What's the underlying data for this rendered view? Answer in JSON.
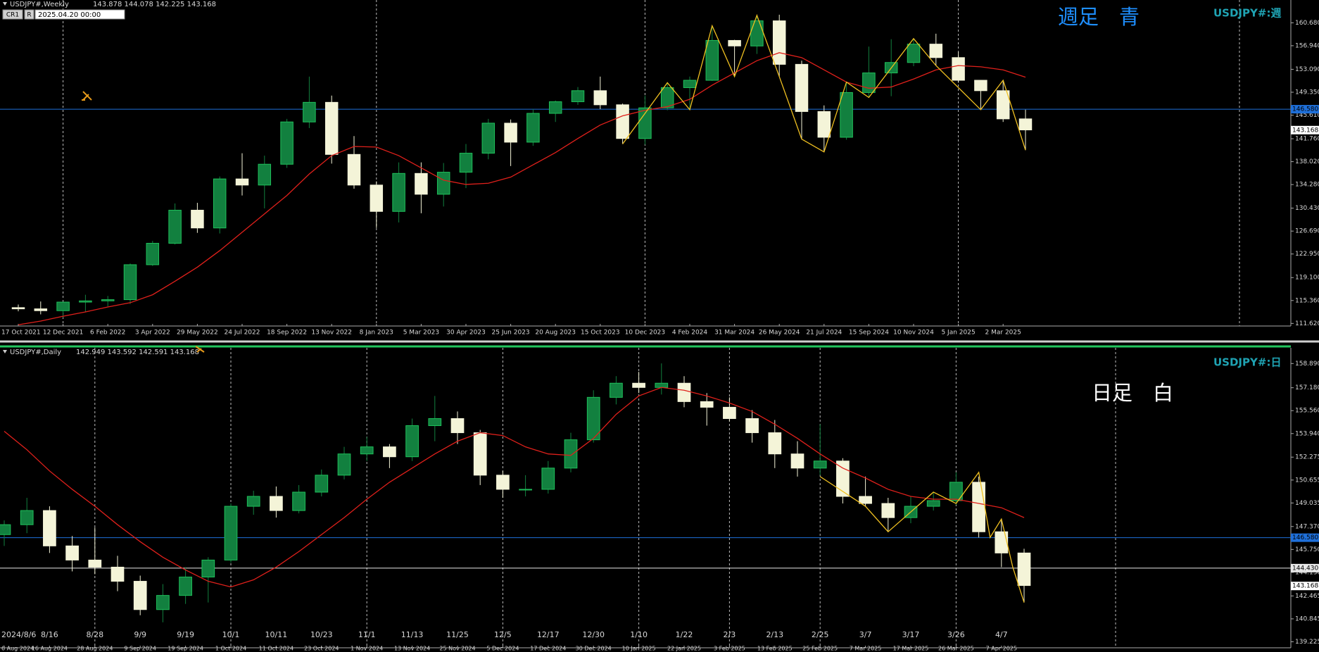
{
  "toolbar": {
    "buttons": [
      "CR1",
      "R"
    ],
    "date": "2025.04.20 00:00"
  },
  "chart_data": [
    {
      "type": "candlestick",
      "title": "USDJPY#,Weekly",
      "ohlc_text": "143.878 144.078 142.225 143.168",
      "symbol_label": "USDJPY#:週",
      "note": "週足　青",
      "note_color": "#1e8fff",
      "bull_color": "#12803f",
      "bear_color": "#f4f4d8",
      "ma_color": "#e0201b",
      "zigzag_color": "#f0c020",
      "ylim": [
        111.2,
        164.4
      ],
      "yticks": [
        {
          "value": 160.68,
          "label": "160.680"
        },
        {
          "value": 156.94,
          "label": "156.940"
        },
        {
          "value": 153.09,
          "label": "153.090"
        },
        {
          "value": 149.35,
          "label": "149.350"
        },
        {
          "value": 145.61,
          "label": "145.610"
        },
        {
          "value": 141.76,
          "label": "141.760"
        },
        {
          "value": 138.02,
          "label": "138.020"
        },
        {
          "value": 134.28,
          "label": "134.280"
        },
        {
          "value": 130.43,
          "label": "130.430"
        },
        {
          "value": 126.69,
          "label": "126.690"
        },
        {
          "value": 122.95,
          "label": "122.950"
        },
        {
          "value": 119.1,
          "label": "119.100"
        },
        {
          "value": 115.36,
          "label": "115.360"
        },
        {
          "value": 111.62,
          "label": "111.620"
        }
      ],
      "xticks": [
        {
          "value": 0,
          "label": "17 Oct 2021"
        },
        {
          "value": 2,
          "label": "12 Dec 2021"
        },
        {
          "value": 4,
          "label": "6 Feb 2022"
        },
        {
          "value": 6,
          "label": "3 Apr 2022"
        },
        {
          "value": 8,
          "label": "29 May 2022"
        },
        {
          "value": 10,
          "label": "24 Jul 2022"
        },
        {
          "value": 12,
          "label": "18 Sep 2022"
        },
        {
          "value": 14,
          "label": "13 Nov 2022"
        },
        {
          "value": 16,
          "label": "8 Jan 2023"
        },
        {
          "value": 18,
          "label": "5 Mar 2023"
        },
        {
          "value": 20,
          "label": "30 Apr 2023"
        },
        {
          "value": 22,
          "label": "25 Jun 2023"
        },
        {
          "value": 24,
          "label": "20 Aug 2023"
        },
        {
          "value": 26,
          "label": "15 Oct 2023"
        },
        {
          "value": 28,
          "label": "10 Dec 2023"
        },
        {
          "value": 30,
          "label": "4 Feb 2024"
        },
        {
          "value": 32,
          "label": "31 Mar 2024"
        },
        {
          "value": 34,
          "label": "26 May 2024"
        },
        {
          "value": 36,
          "label": "21 Jul 2024"
        },
        {
          "value": 38,
          "label": "15 Sep 2024"
        },
        {
          "value": 40,
          "label": "10 Nov 2024"
        },
        {
          "value": 42,
          "label": "5 Jan 2025"
        },
        {
          "value": 44,
          "label": "2 Mar 2025"
        }
      ],
      "separators": [
        1,
        8,
        14,
        21
      ],
      "hlines": [
        {
          "value": 146.58,
          "label": "146.580",
          "color": "#1e6fd9"
        }
      ],
      "last": {
        "value": 143.168,
        "label": "143.168"
      },
      "candles": [
        [
          114.2,
          114.7,
          113.6,
          114.0
        ],
        [
          114.0,
          115.2,
          113.1,
          113.7
        ],
        [
          113.7,
          115.1,
          112.6,
          115.1
        ],
        [
          115.1,
          116.3,
          113.5,
          115.3
        ],
        [
          115.3,
          116.1,
          114.4,
          115.5
        ],
        [
          115.5,
          121.4,
          114.8,
          121.2
        ],
        [
          121.2,
          125.1,
          121.0,
          124.7
        ],
        [
          124.7,
          131.2,
          124.5,
          130.1
        ],
        [
          130.1,
          131.3,
          126.4,
          127.2
        ],
        [
          127.2,
          135.6,
          126.3,
          135.2
        ],
        [
          135.2,
          139.4,
          132.5,
          134.2
        ],
        [
          134.2,
          139.0,
          130.4,
          137.6
        ],
        [
          137.6,
          145.0,
          137.0,
          144.5
        ],
        [
          144.5,
          151.9,
          143.5,
          147.7
        ],
        [
          147.7,
          148.8,
          137.7,
          139.2
        ],
        [
          139.2,
          142.2,
          133.6,
          134.2
        ],
        [
          134.2,
          134.8,
          127.2,
          129.9
        ],
        [
          129.9,
          137.9,
          128.1,
          136.1
        ],
        [
          136.1,
          137.9,
          129.6,
          132.7
        ],
        [
          132.7,
          137.8,
          130.7,
          136.3
        ],
        [
          136.3,
          140.9,
          133.7,
          139.4
        ],
        [
          139.4,
          145.0,
          138.4,
          144.3
        ],
        [
          144.3,
          144.9,
          137.3,
          141.2
        ],
        [
          141.2,
          146.6,
          140.6,
          145.9
        ],
        [
          145.9,
          148.0,
          144.5,
          147.8
        ],
        [
          147.8,
          150.2,
          147.3,
          149.6
        ],
        [
          149.6,
          151.9,
          146.6,
          147.3
        ],
        [
          147.3,
          147.5,
          140.9,
          141.8
        ],
        [
          141.8,
          148.8,
          140.8,
          146.8
        ],
        [
          146.8,
          150.9,
          146.4,
          150.1
        ],
        [
          150.1,
          151.9,
          146.5,
          151.3
        ],
        [
          151.3,
          160.2,
          151.2,
          157.8
        ],
        [
          157.8,
          157.9,
          151.9,
          156.9
        ],
        [
          156.9,
          161.9,
          155.6,
          161.0
        ],
        [
          161.0,
          162.0,
          151.9,
          153.9
        ],
        [
          153.9,
          154.5,
          141.7,
          146.2
        ],
        [
          146.2,
          147.2,
          139.6,
          142.0
        ],
        [
          142.0,
          151.0,
          141.6,
          149.3
        ],
        [
          149.3,
          156.8,
          148.5,
          152.5
        ],
        [
          152.5,
          158.0,
          148.7,
          154.2
        ],
        [
          154.2,
          158.1,
          153.6,
          157.2
        ],
        [
          157.2,
          158.9,
          153.7,
          155.0
        ],
        [
          155.0,
          155.9,
          150.9,
          151.3
        ],
        [
          151.3,
          151.3,
          146.5,
          149.6
        ],
        [
          149.6,
          151.3,
          144.5,
          145.0
        ],
        [
          145.0,
          146.5,
          139.9,
          143.2
        ]
      ],
      "ma": [
        111.4,
        112.0,
        112.8,
        113.5,
        114.3,
        115.0,
        116.3,
        118.5,
        120.8,
        123.5,
        126.5,
        129.5,
        132.5,
        136.0,
        139.0,
        140.5,
        140.4,
        139.0,
        137.0,
        135.0,
        134.3,
        134.5,
        135.5,
        137.5,
        139.5,
        141.8,
        144.0,
        145.5,
        146.4,
        147.0,
        148.2,
        150.5,
        152.5,
        154.5,
        155.8,
        155.0,
        153.0,
        151.0,
        150.0,
        150.2,
        151.5,
        153.0,
        153.7,
        153.5,
        153.0,
        151.8
      ],
      "zigzag": {
        "x": [
          27,
          29,
          30,
          31,
          32,
          33,
          34,
          35,
          36,
          37,
          38,
          40,
          41,
          43,
          44,
          45
        ],
        "y": [
          140.9,
          150.9,
          146.5,
          160.2,
          151.9,
          161.9,
          151.9,
          141.7,
          139.6,
          151.0,
          148.5,
          158.1,
          153.7,
          146.5,
          151.3,
          139.9
        ]
      }
    },
    {
      "type": "candlestick",
      "title": "USDJPY#,Daily",
      "ohlc_text": "142.949 143.592 142.591 143.168",
      "symbol_label": "USDJPY#:日",
      "note": "日足　白",
      "note_color": "#ffffff",
      "bull_color": "#12803f",
      "bear_color": "#f4f4d8",
      "ma_color": "#e0201b",
      "zigzag_color": "#f0c020",
      "ylim": [
        138.8,
        160.0
      ],
      "yticks": [
        {
          "value": 158.89,
          "label": "158.890"
        },
        {
          "value": 157.18,
          "label": "157.180"
        },
        {
          "value": 155.56,
          "label": "155.560"
        },
        {
          "value": 153.94,
          "label": "153.940"
        },
        {
          "value": 152.275,
          "label": "152.275"
        },
        {
          "value": 150.655,
          "label": "150.655"
        },
        {
          "value": 149.035,
          "label": "149.035"
        },
        {
          "value": 147.37,
          "label": "147.370"
        },
        {
          "value": 145.75,
          "label": "145.750"
        },
        {
          "value": 144.13,
          "label": "144.130"
        },
        {
          "value": 142.465,
          "label": "142.465"
        },
        {
          "value": 140.845,
          "label": "140.845"
        },
        {
          "value": 139.225,
          "label": "139.225"
        }
      ],
      "xticks": [
        {
          "value": 0,
          "label": "2024/8/6"
        },
        {
          "value": 2,
          "label": "8/16"
        },
        {
          "value": 4,
          "label": "8/28"
        },
        {
          "value": 6,
          "label": "9/9"
        },
        {
          "value": 8,
          "label": "9/19"
        },
        {
          "value": 10,
          "label": "10/1"
        },
        {
          "value": 12,
          "label": "10/11"
        },
        {
          "value": 14,
          "label": "10/23"
        },
        {
          "value": 16,
          "label": "11/1"
        },
        {
          "value": 18,
          "label": "11/13"
        },
        {
          "value": 20,
          "label": "11/25"
        },
        {
          "value": 22,
          "label": "12/5"
        },
        {
          "value": 24,
          "label": "12/17"
        },
        {
          "value": 26,
          "label": "12/30"
        },
        {
          "value": 28,
          "label": "1/10"
        },
        {
          "value": 30,
          "label": "1/22"
        },
        {
          "value": 32,
          "label": "2/3"
        },
        {
          "value": 34,
          "label": "2/13"
        },
        {
          "value": 36,
          "label": "2/25"
        },
        {
          "value": 38,
          "label": "3/7"
        },
        {
          "value": 40,
          "label": "3/17"
        },
        {
          "value": 42,
          "label": "3/26"
        },
        {
          "value": 44,
          "label": "4/7"
        }
      ],
      "xtick_dates": [
        "6 Aug 2024",
        "16 Aug 2024",
        "28 Aug 2024",
        "9 Sep 2024",
        "19 Sep 2024",
        "1 Oct 2024",
        "11 Oct 2024",
        "23 Oct 2024",
        "1 Nov 2024",
        "13 Nov 2024",
        "25 Nov 2024",
        "5 Dec 2024",
        "17 Dec 2024",
        "30 Dec 2024",
        "10 Jan 2025",
        "22 Jan 2025",
        "3 Feb 2025",
        "13 Feb 2025",
        "25 Feb 2025",
        "7 Mar 2025",
        "17 Mar 2025",
        "26 Mar 2025",
        "7 Apr 2025"
      ],
      "separators": [
        2,
        5,
        8,
        11,
        14,
        16,
        18,
        21
      ],
      "hlines": [
        {
          "value": 146.58,
          "label": "146.580",
          "color": "#1e6fd9"
        },
        {
          "value": 144.43,
          "label": "144.430",
          "color": "#e8e8e8"
        }
      ],
      "last": {
        "value": 143.168,
        "label": "143.168"
      },
      "candles": [
        [
          146.8,
          147.8,
          146.0,
          147.5
        ],
        [
          147.5,
          149.4,
          146.9,
          148.5
        ],
        [
          148.5,
          148.8,
          145.5,
          146.0
        ],
        [
          146.0,
          146.7,
          144.2,
          145.0
        ],
        [
          145.0,
          147.3,
          144.0,
          144.5
        ],
        [
          144.5,
          145.3,
          142.8,
          143.5
        ],
        [
          143.5,
          143.9,
          141.1,
          141.5
        ],
        [
          141.5,
          143.3,
          140.6,
          142.5
        ],
        [
          142.5,
          144.5,
          141.9,
          143.8
        ],
        [
          143.8,
          145.2,
          142.0,
          145.0
        ],
        [
          145.0,
          149.0,
          144.8,
          148.8
        ],
        [
          148.8,
          149.9,
          148.2,
          149.5
        ],
        [
          149.5,
          150.2,
          148.0,
          148.5
        ],
        [
          148.5,
          150.3,
          148.3,
          149.8
        ],
        [
          149.8,
          151.4,
          149.5,
          151.0
        ],
        [
          151.0,
          153.0,
          150.7,
          152.5
        ],
        [
          152.5,
          153.7,
          152.0,
          153.0
        ],
        [
          153.0,
          153.2,
          151.5,
          152.3
        ],
        [
          152.3,
          155.0,
          152.0,
          154.5
        ],
        [
          154.5,
          156.6,
          153.4,
          155.0
        ],
        [
          155.0,
          155.5,
          153.2,
          154.0
        ],
        [
          154.0,
          154.2,
          150.3,
          151.0
        ],
        [
          151.0,
          151.3,
          149.4,
          150.0
        ],
        [
          150.0,
          151.0,
          149.5,
          150.0
        ],
        [
          150.0,
          152.0,
          149.7,
          151.5
        ],
        [
          151.5,
          154.0,
          151.2,
          153.5
        ],
        [
          153.5,
          157.0,
          153.3,
          156.5
        ],
        [
          156.5,
          158.0,
          156.0,
          157.5
        ],
        [
          157.5,
          158.3,
          156.8,
          157.2
        ],
        [
          157.2,
          158.9,
          156.7,
          157.5
        ],
        [
          157.5,
          158.0,
          155.8,
          156.2
        ],
        [
          156.2,
          156.8,
          154.5,
          155.8
        ],
        [
          155.8,
          156.5,
          154.8,
          155.0
        ],
        [
          155.0,
          155.6,
          153.3,
          154.0
        ],
        [
          154.0,
          154.9,
          151.5,
          152.5
        ],
        [
          152.5,
          153.4,
          150.9,
          151.5
        ],
        [
          151.5,
          154.6,
          151.0,
          152.0
        ],
        [
          152.0,
          152.2,
          149.0,
          149.5
        ],
        [
          149.5,
          150.9,
          148.8,
          149.0
        ],
        [
          149.0,
          149.4,
          147.0,
          148.0
        ],
        [
          148.0,
          149.5,
          147.6,
          148.8
        ],
        [
          148.8,
          149.8,
          148.5,
          149.2
        ],
        [
          149.2,
          151.2,
          148.9,
          150.5
        ],
        [
          150.5,
          150.9,
          146.6,
          147.0
        ],
        [
          147.0,
          147.9,
          144.5,
          145.5
        ],
        [
          145.5,
          145.8,
          142.0,
          143.2
        ]
      ],
      "ma": [
        154.1,
        152.8,
        151.3,
        150.0,
        148.8,
        147.5,
        146.3,
        145.2,
        144.3,
        143.5,
        143.1,
        143.6,
        144.5,
        145.6,
        146.8,
        148.0,
        149.3,
        150.5,
        151.5,
        152.5,
        153.4,
        154.0,
        153.8,
        153.0,
        152.5,
        152.4,
        153.6,
        155.3,
        156.6,
        157.2,
        157.0,
        156.6,
        156.1,
        155.5,
        154.6,
        153.6,
        152.5,
        151.5,
        150.8,
        150.0,
        149.5,
        149.3,
        149.3,
        149.0,
        148.7,
        148.0
      ],
      "zigzag": {
        "x": [
          36,
          38,
          39,
          41,
          42,
          43,
          43.5,
          44,
          44.5,
          45
        ],
        "y": [
          150.9,
          148.8,
          147.0,
          149.8,
          149.0,
          151.2,
          146.6,
          147.9,
          144.5,
          142.0
        ]
      }
    }
  ]
}
